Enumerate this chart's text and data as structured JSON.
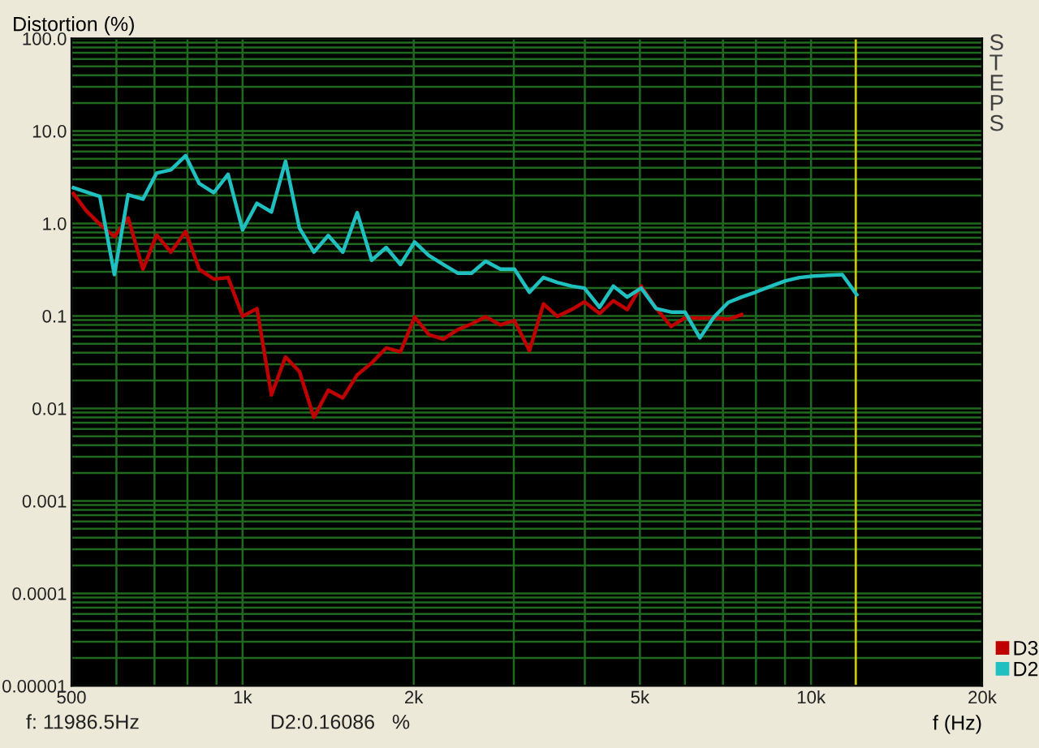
{
  "chart_data": {
    "type": "line",
    "ylabel": "Distortion (%)",
    "xlabel": "f (Hz)",
    "annotations": [
      "f: 11986.5Hz",
      "D2:0.16086   %",
      "STEPS"
    ],
    "log": "xy",
    "grid": true,
    "legend": "bottom right",
    "marker": "none",
    "line_style": "solid",
    "xlim": [
      500,
      20000
    ],
    "xticks": [
      500,
      {
        "value": 600,
        "label": null
      },
      {
        "value": 700,
        "label": null
      },
      {
        "value": 800,
        "label": null
      },
      {
        "value": 900,
        "label": null
      },
      {
        "value": 1000,
        "label": "1k"
      },
      {
        "value": 2000,
        "label": "2k"
      },
      {
        "value": 3000,
        "label": null
      },
      {
        "value": 4000,
        "label": null
      },
      {
        "value": 5000,
        "label": "5k"
      },
      {
        "value": 6000,
        "label": null
      },
      {
        "value": 7000,
        "label": null
      },
      {
        "value": 8000,
        "label": null
      },
      {
        "value": 9000,
        "label": null
      },
      {
        "value": 10000,
        "label": "10k"
      },
      {
        "value": 20000,
        "label": "20k"
      }
    ],
    "ylim": [
      1e-05,
      100
    ],
    "yticks": [
      {
        "value": 1e-05,
        "label": "0.00001"
      },
      {
        "value": 2e-05,
        "label": null
      },
      {
        "value": 3e-05,
        "label": null
      },
      {
        "value": 4e-05,
        "label": null
      },
      {
        "value": 5e-05,
        "label": null
      },
      {
        "value": 6e-05,
        "label": null
      },
      {
        "value": 7e-05,
        "label": null
      },
      {
        "value": 8e-05,
        "label": null
      },
      {
        "value": 9e-05,
        "label": null
      },
      {
        "value": 0.0001,
        "label": "0.0001"
      },
      {
        "value": 0.0002,
        "label": null
      },
      {
        "value": 0.0003,
        "label": null
      },
      {
        "value": 0.0004,
        "label": null
      },
      {
        "value": 0.0005,
        "label": null
      },
      {
        "value": 0.0006,
        "label": null
      },
      {
        "value": 0.0007,
        "label": null
      },
      {
        "value": 0.0008,
        "label": null
      },
      {
        "value": 0.0009,
        "label": null
      },
      0.001,
      {
        "value": 0.002,
        "label": null
      },
      {
        "value": 0.003,
        "label": null
      },
      {
        "value": 0.004,
        "label": null
      },
      {
        "value": 0.005,
        "label": null
      },
      {
        "value": 0.006,
        "label": null
      },
      {
        "value": 0.007,
        "label": null
      },
      {
        "value": 0.008,
        "label": null
      },
      {
        "value": 0.009,
        "label": null
      },
      0.01,
      {
        "value": 0.02,
        "label": null
      },
      {
        "value": 0.03,
        "label": null
      },
      {
        "value": 0.04,
        "label": null
      },
      {
        "value": 0.05,
        "label": null
      },
      {
        "value": 0.06,
        "label": null
      },
      {
        "value": 0.07,
        "label": null
      },
      {
        "value": 0.08,
        "label": null
      },
      {
        "value": 0.09,
        "label": null
      },
      0.1,
      {
        "value": 0.2,
        "label": null
      },
      {
        "value": 0.3,
        "label": null
      },
      {
        "value": 0.4,
        "label": null
      },
      {
        "value": 0.5,
        "label": null
      },
      {
        "value": 0.6,
        "label": null
      },
      {
        "value": 0.7,
        "label": null
      },
      {
        "value": 0.8,
        "label": null
      },
      {
        "value": 0.9,
        "label": null
      },
      {
        "value": 1,
        "label": "1.0"
      },
      {
        "value": 2,
        "label": null
      },
      {
        "value": 3,
        "label": null
      },
      {
        "value": 4,
        "label": null
      },
      {
        "value": 5,
        "label": null
      },
      {
        "value": 6,
        "label": null
      },
      {
        "value": 7,
        "label": null
      },
      {
        "value": 8,
        "label": null
      },
      {
        "value": 9,
        "label": null
      },
      {
        "value": 10,
        "label": "10.0"
      },
      {
        "value": 20,
        "label": null
      },
      {
        "value": 30,
        "label": null
      },
      {
        "value": 40,
        "label": null
      },
      {
        "value": 50,
        "label": null
      },
      {
        "value": 60,
        "label": null
      },
      {
        "value": 70,
        "label": null
      },
      {
        "value": 80,
        "label": null
      },
      {
        "value": 90,
        "label": null
      },
      {
        "value": 100,
        "label": "100.0"
      }
    ],
    "ref_lines": [
      {
        "axis": "x",
        "value": 11986.5,
        "label": null,
        "color": "#c8c800"
      }
    ],
    "series": [
      {
        "name": "D3",
        "color": "#c00000",
        "x": [
          504,
          531,
          561,
          595,
          629,
          668,
          706,
          748,
          794,
          839,
          890,
          943,
          1000,
          1060,
          1124,
          1190,
          1259,
          1335,
          1415,
          1501,
          1591,
          1687,
          1789,
          1896,
          2008,
          2126,
          2254,
          2390,
          2528,
          2676,
          2842,
          3008,
          3196,
          3383,
          3576,
          3791,
          3993,
          4246,
          4490,
          4750,
          5026,
          5340,
          5671,
          6002,
          6376,
          6747,
          7152,
          7550
        ],
        "values": [
          2.1,
          1.37,
          0.98,
          0.72,
          1.15,
          0.32,
          0.75,
          0.49,
          0.82,
          0.32,
          0.25,
          0.26,
          0.099,
          0.12,
          0.014,
          0.036,
          0.025,
          0.008,
          0.0157,
          0.013,
          0.023,
          0.031,
          0.045,
          0.041,
          0.097,
          0.063,
          0.056,
          0.071,
          0.082,
          0.098,
          0.08,
          0.089,
          0.042,
          0.135,
          0.099,
          0.117,
          0.142,
          0.106,
          0.146,
          0.117,
          0.21,
          0.121,
          0.077,
          0.095,
          0.095,
          0.095,
          0.092,
          0.103
        ]
      },
      {
        "name": "D2",
        "color": "#20c0c0",
        "x": [
          504,
          561,
          595,
          629,
          668,
          706,
          748,
          794,
          839,
          890,
          943,
          1000,
          1060,
          1124,
          1190,
          1259,
          1335,
          1415,
          1501,
          1591,
          1687,
          1789,
          1896,
          2008,
          2126,
          2254,
          2390,
          2528,
          2676,
          2842,
          3008,
          3196,
          3383,
          3576,
          3791,
          3993,
          4246,
          4490,
          4750,
          5026,
          5340,
          5671,
          6002,
          6376,
          6747,
          7152,
          7550,
          7975,
          8510,
          9022,
          9539,
          10115,
          11350,
          12030
        ],
        "values": [
          2.43,
          1.96,
          0.28,
          2.04,
          1.83,
          3.5,
          3.8,
          5.4,
          2.7,
          2.15,
          3.4,
          0.85,
          1.65,
          1.33,
          4.7,
          0.89,
          0.49,
          0.74,
          0.49,
          1.31,
          0.4,
          0.55,
          0.36,
          0.63,
          0.45,
          0.36,
          0.29,
          0.29,
          0.39,
          0.32,
          0.32,
          0.18,
          0.26,
          0.23,
          0.21,
          0.2,
          0.124,
          0.21,
          0.16,
          0.2,
          0.12,
          0.11,
          0.11,
          0.058,
          0.097,
          0.14,
          0.16,
          0.18,
          0.21,
          0.24,
          0.26,
          0.27,
          0.28,
          0.17
        ]
      }
    ]
  }
}
